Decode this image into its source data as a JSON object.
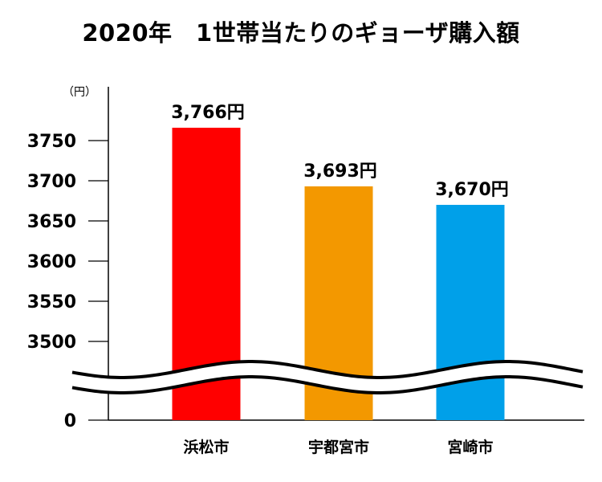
{
  "chart_data": {
    "type": "bar",
    "title": "2020年　1世帯当たりのギョーザ購入額",
    "unit": "（円）",
    "categories": [
      "浜松市",
      "宇都宮市",
      "宮崎市"
    ],
    "values": [
      3766,
      3693,
      3670
    ],
    "data_labels": [
      "3,766円",
      "3,693円",
      "3,670円"
    ],
    "colors": [
      "#ff0000",
      "#f39800",
      "#00a0e9"
    ],
    "y_ticks": [
      "3750",
      "3700",
      "3650",
      "3600",
      "3550",
      "3500",
      "0"
    ],
    "ylim": [
      3500,
      3766
    ],
    "axis_break": true,
    "grid": false,
    "legend": "none"
  }
}
